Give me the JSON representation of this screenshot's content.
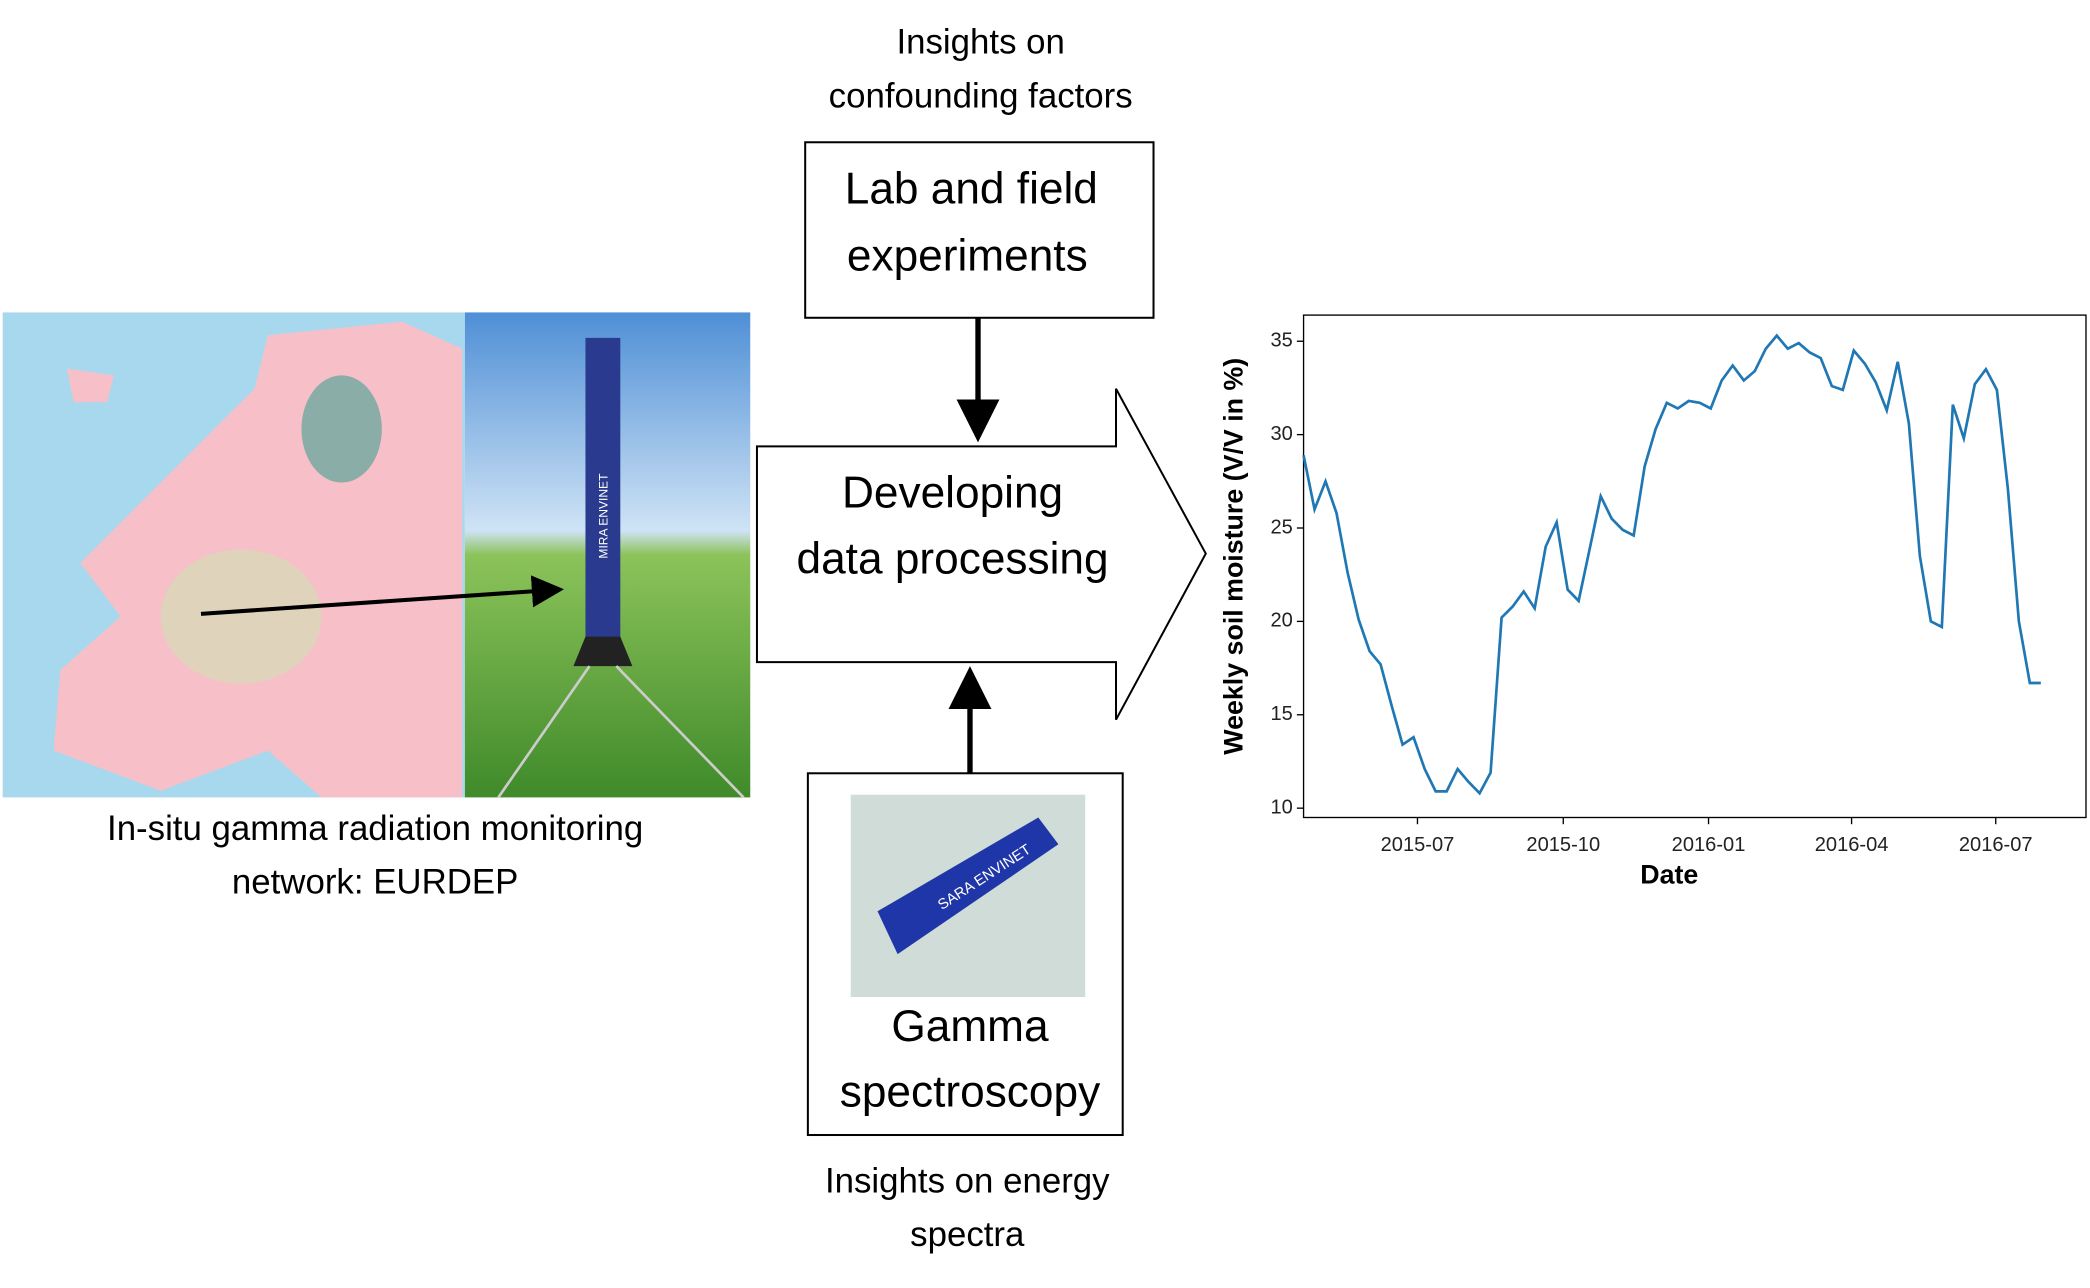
{
  "lab": {
    "caption": [
      "Insights on",
      "confounding factors"
    ],
    "label": [
      "Lab and field",
      "experiments"
    ]
  },
  "processing": {
    "label": [
      "Developing",
      "data processing"
    ]
  },
  "spectroscopy": {
    "label": [
      "Gamma",
      "spectroscopy"
    ],
    "caption": [
      "Insights on energy",
      "spectra"
    ],
    "device_text": "SARA ENVINET"
  },
  "network": {
    "caption": [
      "In-situ gamma radiation monitoring",
      "network: EURDEP"
    ],
    "device_text": "MIRA ENVINET"
  },
  "chart_data": {
    "type": "line",
    "xlabel": "Date",
    "ylabel": "Weekly soil moisture (V/V in %)",
    "xlim": [
      0,
      71.1
    ],
    "xticks": [
      {
        "value": 10.35,
        "label": "2015-07"
      },
      {
        "value": 23.6,
        "label": "2015-10"
      },
      {
        "value": 36.8,
        "label": "2016-01"
      },
      {
        "value": 49.8,
        "label": "2016-04"
      },
      {
        "value": 62.9,
        "label": "2016-07"
      }
    ],
    "ylim": [
      9.5,
      36.4
    ],
    "yticks": [
      10,
      15,
      20,
      25,
      30,
      35
    ],
    "series": [
      {
        "color": "#1f77b4",
        "values": [
          28.9,
          26.0,
          27.5,
          25.8,
          22.6,
          20.1,
          18.4,
          17.7,
          15.5,
          13.4,
          13.8,
          12.1,
          10.9,
          10.9,
          12.1,
          11.4,
          10.8,
          11.9,
          20.2,
          20.8,
          21.6,
          20.7,
          24.0,
          25.3,
          21.7,
          21.1,
          23.9,
          26.7,
          25.5,
          24.9,
          24.6,
          28.3,
          30.3,
          31.7,
          31.4,
          31.8,
          31.7,
          31.4,
          32.9,
          33.7,
          32.9,
          33.4,
          34.6,
          35.3,
          34.6,
          34.9,
          34.4,
          34.1,
          32.6,
          32.4,
          34.5,
          33.8,
          32.8,
          31.3,
          33.9,
          30.6,
          23.5,
          20.0,
          19.7,
          31.6,
          29.8,
          32.7,
          33.5,
          32.4,
          27.1,
          20.0,
          16.7,
          16.7
        ]
      }
    ]
  }
}
